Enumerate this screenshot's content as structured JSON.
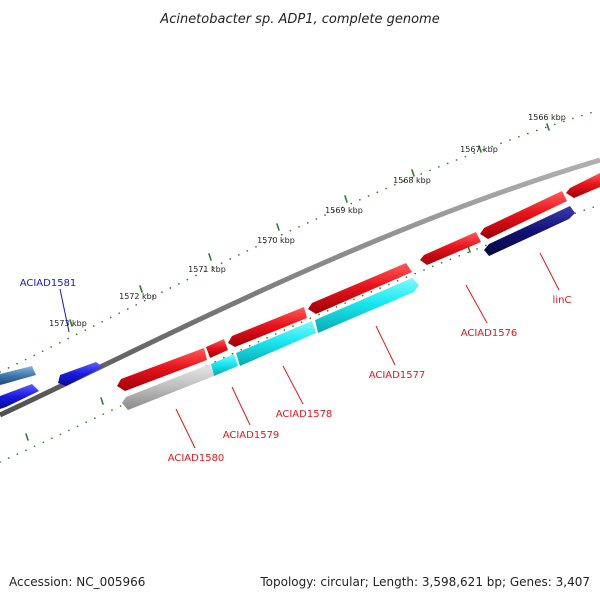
{
  "title": "Acinetobacter sp. ADP1, complete genome",
  "footer": {
    "accession": "Accession: NC_005966",
    "summary": "Topology: circular; Length: 3,598,621 bp; Genes: 3,407"
  },
  "colors": {
    "forward_gene": "#e8141c",
    "reverse_gene_cyan": "#19e8f0",
    "reverse_gene_navy": "#121274",
    "reverse_gene_gray": "#bdbdbd",
    "blue_gene": "#1a1ae0",
    "steelblue_gene": "#3f79b0",
    "backbone": "#808080",
    "tick_dots": "#2e7d32",
    "label_red": "#e8141c",
    "label_blue": "#1a1ab4"
  },
  "kbp_labels": [
    "1566 kbp",
    "1567 kbp",
    "1568 kbp",
    "1569 kbp",
    "1570 kbp",
    "1571 kbp",
    "1572 kbp",
    "1573 kbp"
  ],
  "gene_labels": [
    {
      "id": "ACIAD1581",
      "text": "ACIAD1581",
      "color": "blue"
    },
    {
      "id": "linC",
      "text": "linC",
      "color": "red"
    },
    {
      "id": "ACIAD1576",
      "text": "ACIAD1576",
      "color": "red"
    },
    {
      "id": "ACIAD1577",
      "text": "ACIAD1577",
      "color": "red"
    },
    {
      "id": "ACIAD1578",
      "text": "ACIAD1578",
      "color": "red"
    },
    {
      "id": "ACIAD1579",
      "text": "ACIAD1579",
      "color": "red"
    },
    {
      "id": "ACIAD1580",
      "text": "ACIAD1580",
      "color": "red"
    }
  ]
}
